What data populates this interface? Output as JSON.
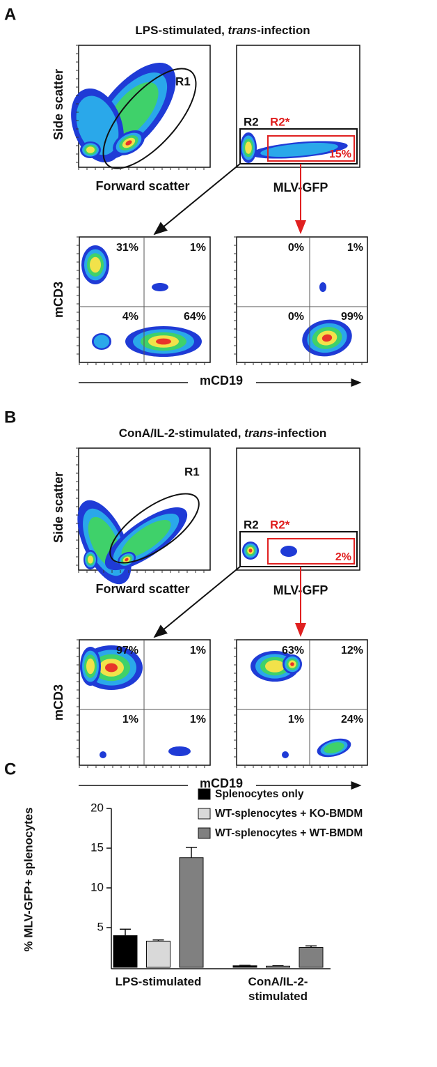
{
  "panel_a": {
    "label": "A",
    "title_parts": [
      "LPS-stimulated, ",
      "trans",
      "-infection"
    ],
    "side_scatter": "Side scatter",
    "forward_scatter": "Forward scatter",
    "gfp_axis": "MLV-GFP",
    "gate_r1": "R1",
    "gate_r2": "R2",
    "gate_r2_star": "R2*",
    "gfp_percent": "15%",
    "y_axis": "mCD3",
    "x_axis": "mCD19",
    "left_quadrants": [
      "31%",
      "1%",
      "4%",
      "64%"
    ],
    "right_quadrants": [
      "0%",
      "1%",
      "0%",
      "99%"
    ]
  },
  "panel_b": {
    "label": "B",
    "title_parts": [
      "ConA/IL-2-stimulated, ",
      "trans",
      "-infection"
    ],
    "side_scatter": "Side scatter",
    "forward_scatter": "Forward scatter",
    "gfp_axis": "MLV-GFP",
    "gate_r1": "R1",
    "gate_r2": "R2",
    "gate_r2_star": "R2*",
    "gfp_percent": "2%",
    "y_axis": "mCD3",
    "x_axis": "mCD19",
    "left_quadrants": [
      "97%",
      "1%",
      "1%",
      "1%"
    ],
    "right_quadrants": [
      "63%",
      "12%",
      "1%",
      "24%"
    ]
  },
  "chart_data": {
    "type": "bar",
    "panel_label": "C",
    "y_label": "% MLV-GFP+ splenocytes",
    "categories": [
      "LPS-stimulated",
      "ConA/IL-2-stimulated"
    ],
    "series": [
      {
        "name": "Splenocytes only",
        "color": "#000000",
        "values": [
          4.0,
          0.2
        ],
        "errors": [
          0.8,
          0.05
        ]
      },
      {
        "name": "WT-splenocytes + KO-BMDM",
        "color": "#d9d9d9",
        "values": [
          3.3,
          0.15
        ],
        "errors": [
          0.15,
          0.05
        ]
      },
      {
        "name": "WT-splenocytes + WT-BMDM",
        "color": "#808080",
        "values": [
          13.8,
          2.5
        ],
        "errors": [
          1.3,
          0.2
        ]
      }
    ],
    "ylim": [
      0,
      20
    ],
    "yticks": [
      5,
      10,
      15,
      20
    ],
    "legend": "top-right"
  }
}
